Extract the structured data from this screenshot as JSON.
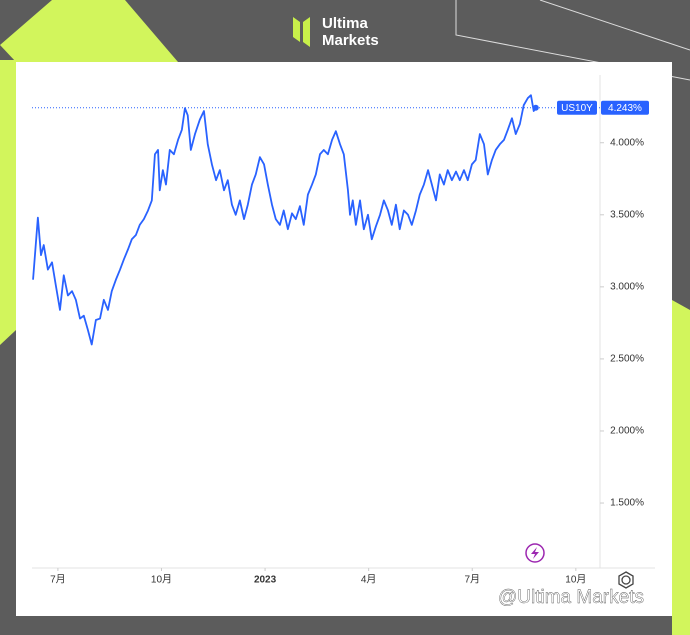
{
  "header": {
    "brand_top": "Ultima",
    "brand_bottom": "Markets"
  },
  "watermark": "@Ultima Markets",
  "chart_data": {
    "type": "line",
    "x": [
      6.28,
      6.42,
      6.51,
      6.59,
      6.71,
      6.83,
      6.94,
      7.06,
      7.17,
      7.29,
      7.41,
      7.52,
      7.64,
      7.75,
      7.87,
      7.98,
      8.1,
      8.22,
      8.33,
      8.45,
      8.56,
      8.68,
      8.8,
      8.91,
      9.03,
      9.14,
      9.26,
      9.37,
      9.49,
      9.61,
      9.72,
      9.81,
      9.9,
      9.95,
      10.04,
      10.13,
      10.24,
      10.36,
      10.48,
      10.59,
      10.68,
      10.76,
      10.85,
      10.97,
      11.11,
      11.23,
      11.34,
      11.46,
      11.58,
      11.69,
      11.81,
      11.92,
      12.04,
      12.15,
      12.27,
      12.39,
      12.5,
      12.62,
      12.73,
      12.85,
      12.97,
      13.08,
      13.2,
      13.31,
      13.43,
      13.54,
      13.66,
      13.78,
      13.89,
      14.01,
      14.12,
      14.24,
      14.36,
      14.47,
      14.59,
      14.7,
      14.82,
      14.94,
      15.05,
      15.17,
      15.28,
      15.4,
      15.46,
      15.54,
      15.63,
      15.75,
      15.86,
      15.98,
      16.09,
      16.21,
      16.33,
      16.44,
      16.56,
      16.67,
      16.79,
      16.9,
      17.02,
      17.14,
      17.25,
      17.37,
      17.48,
      17.6,
      17.72,
      17.83,
      17.95,
      18.06,
      18.18,
      18.29,
      18.41,
      18.53,
      18.64,
      18.76,
      18.87,
      18.99,
      19.1,
      19.22,
      19.34,
      19.45,
      19.57,
      19.68,
      19.8,
      19.92,
      20.03,
      20.15,
      20.26,
      20.38,
      20.49,
      20.61,
      20.7,
      20.78,
      20.84
    ],
    "series": [
      {
        "name": "US10Y",
        "color": "#2962ff",
        "values": [
          3.05,
          3.48,
          3.22,
          3.29,
          3.12,
          3.17,
          3.01,
          2.84,
          3.08,
          2.94,
          2.97,
          2.91,
          2.78,
          2.8,
          2.7,
          2.6,
          2.77,
          2.78,
          2.91,
          2.84,
          2.97,
          3.05,
          3.12,
          3.19,
          3.26,
          3.33,
          3.36,
          3.43,
          3.47,
          3.53,
          3.6,
          3.92,
          3.95,
          3.67,
          3.81,
          3.71,
          3.95,
          3.92,
          4.02,
          4.09,
          4.24,
          4.19,
          3.95,
          4.06,
          4.16,
          4.22,
          3.99,
          3.85,
          3.74,
          3.81,
          3.67,
          3.74,
          3.57,
          3.5,
          3.6,
          3.47,
          3.57,
          3.71,
          3.78,
          3.9,
          3.85,
          3.71,
          3.57,
          3.47,
          3.43,
          3.53,
          3.4,
          3.51,
          3.47,
          3.56,
          3.43,
          3.64,
          3.71,
          3.78,
          3.92,
          3.95,
          3.92,
          4.02,
          4.08,
          3.99,
          3.92,
          3.67,
          3.5,
          3.6,
          3.43,
          3.6,
          3.4,
          3.5,
          3.33,
          3.42,
          3.5,
          3.6,
          3.53,
          3.43,
          3.57,
          3.4,
          3.53,
          3.5,
          3.43,
          3.53,
          3.64,
          3.71,
          3.81,
          3.71,
          3.6,
          3.78,
          3.71,
          3.81,
          3.74,
          3.8,
          3.74,
          3.81,
          3.74,
          3.85,
          3.88,
          4.06,
          3.99,
          3.78,
          3.88,
          3.95,
          3.99,
          4.02,
          4.09,
          4.17,
          4.06,
          4.13,
          4.26,
          4.31,
          4.33,
          4.22,
          4.243
        ]
      }
    ],
    "last_label": "4.243%",
    "xlim": [
      6.25,
      22.7
    ],
    "xticks": [
      {
        "value": 7,
        "label": "7月"
      },
      {
        "value": 10,
        "label": "10月"
      },
      {
        "value": 13,
        "label": "2023"
      },
      {
        "value": 16,
        "label": "4月"
      },
      {
        "value": 19,
        "label": "7月"
      },
      {
        "value": 22,
        "label": "10月"
      }
    ],
    "ylim": [
      1.07,
      4.47
    ],
    "yticks": [
      {
        "value": 1.5,
        "label": "1.500%"
      },
      {
        "value": 2,
        "label": "2.000%"
      },
      {
        "value": 2.5,
        "label": "2.500%"
      },
      {
        "value": 3,
        "label": "3.000%"
      },
      {
        "value": 3.5,
        "label": "3.500%"
      },
      {
        "value": 4,
        "label": "4.000%"
      }
    ],
    "grid": false
  }
}
